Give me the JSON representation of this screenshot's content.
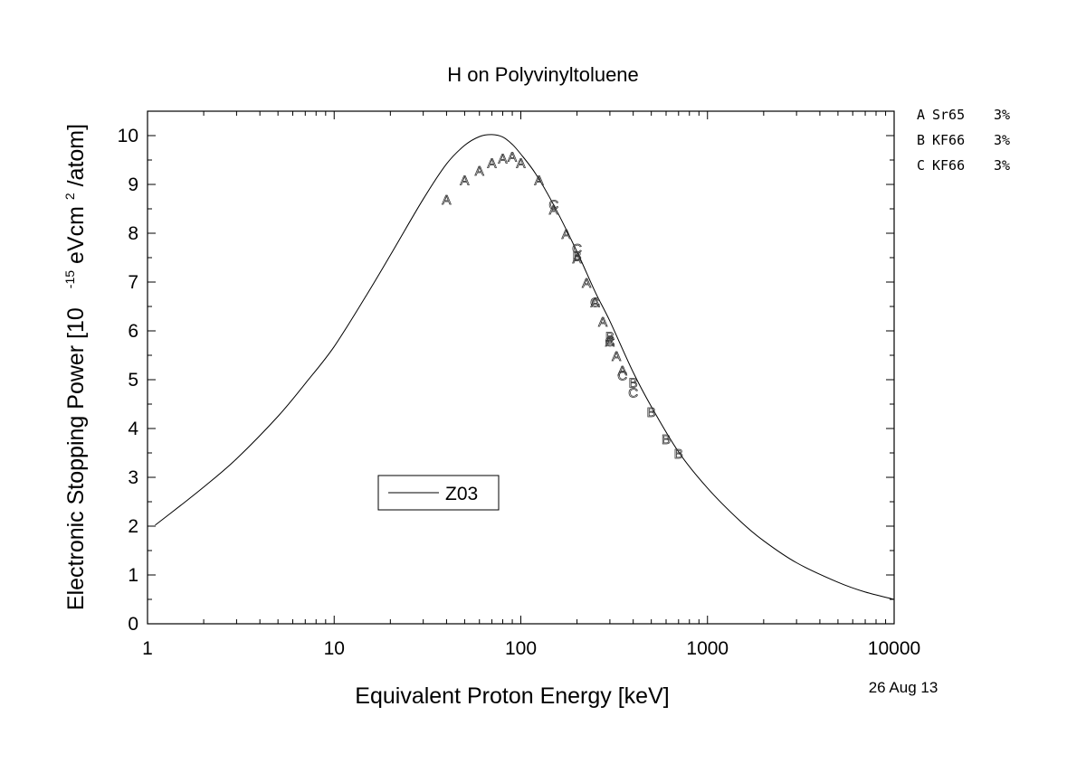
{
  "chart_data": {
    "type": "line",
    "title": "H on Polyvinyltoluene",
    "xlabel": "Equivalent Proton Energy [keV]",
    "ylabel": {
      "prefix": "Electronic Stopping Power [10",
      "exp1": "-15",
      "mid": "eVcm",
      "exp2": "2",
      "suffix": "/atom]"
    },
    "x_scale": "log",
    "xlim": [
      1,
      10000
    ],
    "ylim": [
      0,
      10.5
    ],
    "x_ticks": [
      "1",
      "10",
      "100",
      "1000",
      "10000"
    ],
    "y_ticks": [
      "0",
      "1",
      "2",
      "3",
      "4",
      "5",
      "6",
      "7",
      "8",
      "9",
      "10"
    ],
    "grid": false,
    "legend": {
      "placement": "lower-left inside plot",
      "entries": [
        "Z03"
      ]
    },
    "series": [
      {
        "name": "Z03",
        "kind": "line",
        "x": [
          1.1,
          1.5,
          2,
          3,
          5,
          7,
          10,
          15,
          20,
          30,
          40,
          50,
          60,
          70,
          80,
          90,
          100,
          120,
          150,
          200,
          250,
          300,
          400,
          500,
          700,
          1000,
          1500,
          2000,
          3000,
          5000,
          7000,
          10000
        ],
        "y": [
          2.02,
          2.42,
          2.8,
          3.38,
          4.25,
          4.92,
          5.68,
          6.75,
          7.55,
          8.7,
          9.42,
          9.8,
          9.98,
          10.02,
          9.97,
          9.82,
          9.62,
          9.22,
          8.58,
          7.62,
          6.8,
          6.2,
          5.15,
          4.45,
          3.52,
          2.78,
          2.1,
          1.7,
          1.25,
          0.85,
          0.65,
          0.5
        ]
      },
      {
        "name": "A",
        "kind": "marker",
        "x": [
          40,
          50,
          60,
          70,
          80,
          90,
          100,
          125,
          150,
          175,
          200,
          225,
          250,
          275,
          300,
          325,
          350
        ],
        "y": [
          8.7,
          9.1,
          9.3,
          9.45,
          9.55,
          9.58,
          9.45,
          9.1,
          8.5,
          8.0,
          7.5,
          7.0,
          6.6,
          6.2,
          5.8,
          5.5,
          5.2
        ]
      },
      {
        "name": "B",
        "kind": "marker",
        "x": [
          200,
          300,
          400,
          500,
          600,
          700
        ],
        "y": [
          7.55,
          5.9,
          4.95,
          4.35,
          3.8,
          3.5
        ]
      },
      {
        "name": "C",
        "kind": "marker",
        "x": [
          150,
          200,
          250,
          300,
          350,
          400
        ],
        "y": [
          8.6,
          7.7,
          6.6,
          5.8,
          5.1,
          4.75
        ]
      }
    ]
  },
  "references": [
    {
      "letter": "A",
      "source": "Sr65",
      "uncertainty": "3%"
    },
    {
      "letter": "B",
      "source": "KF66",
      "uncertainty": "3%"
    },
    {
      "letter": "C",
      "source": "KF66",
      "uncertainty": "3%"
    }
  ],
  "date": "26 Aug 13"
}
